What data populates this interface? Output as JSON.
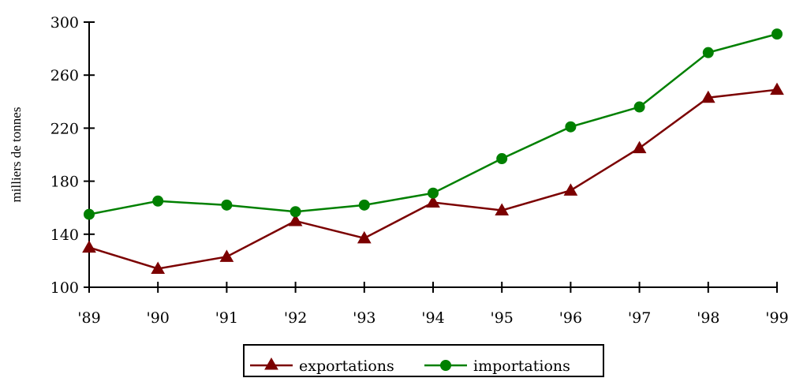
{
  "chart_data": {
    "type": "line",
    "title": "",
    "xlabel": "",
    "ylabel": "milliers de tonnes",
    "categories": [
      "'89",
      "'90",
      "'91",
      "'92",
      "'93",
      "'94",
      "'95",
      "'96",
      "'97",
      "'98",
      "'99"
    ],
    "ylim": [
      100,
      300
    ],
    "yticks": [
      100,
      140,
      180,
      220,
      260,
      300
    ],
    "grid": false,
    "legend_position": "bottom",
    "series": [
      {
        "name": "exportations",
        "color": "#7b0000",
        "marker": "triangle",
        "values": [
          130,
          114,
          123,
          150,
          137,
          164,
          158,
          173,
          205,
          243,
          249
        ]
      },
      {
        "name": "importations",
        "color": "#008000",
        "marker": "circle",
        "values": [
          155,
          165,
          162,
          157,
          162,
          171,
          197,
          221,
          236,
          277,
          291
        ]
      }
    ]
  }
}
